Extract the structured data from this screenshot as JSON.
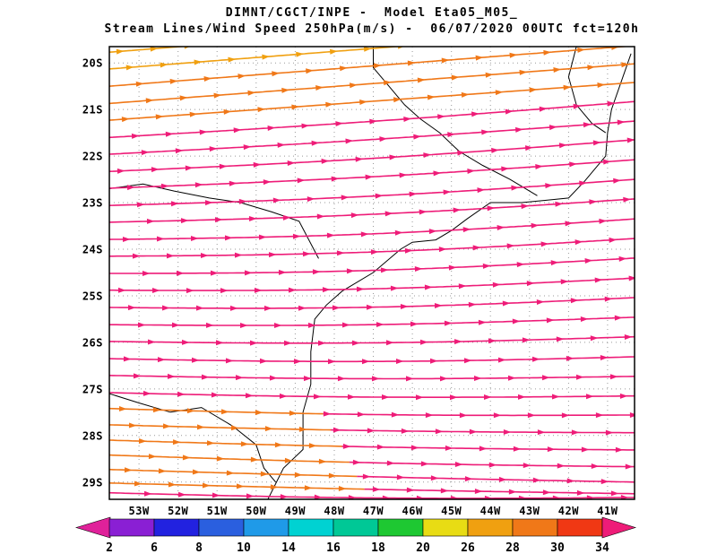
{
  "header": {
    "title_line1": "DIMNT/CGCT/INPE -  Model Eta05_M05_",
    "title_line2": "Stream Lines/Wind Speed 250hPa(m/s) -  06/07/2020 00UTC fct=120h"
  },
  "chart_data": {
    "type": "streamline-map",
    "institution": "DIMNT/CGCT/INPE",
    "model": "Eta05_M05_",
    "variable": "Stream Lines/Wind Speed",
    "level": "250hPa",
    "units": "m/s",
    "valid_time": "06/07/2020 00UTC",
    "forecast": "fct=120h",
    "x_axis": {
      "tick_labels": [
        "53W",
        "52W",
        "51W",
        "50W",
        "49W",
        "48W",
        "47W",
        "46W",
        "45W",
        "44W",
        "43W",
        "42W",
        "41W"
      ],
      "tick_lons": [
        53,
        52,
        51,
        50,
        49,
        48,
        47,
        46,
        45,
        44,
        43,
        42,
        41
      ],
      "lon_west_edge": 53.76,
      "lon_east_edge": 40.31,
      "grid": "dotted"
    },
    "y_axis": {
      "tick_labels": [
        "20S",
        "21S",
        "22S",
        "23S",
        "24S",
        "25S",
        "26S",
        "27S",
        "28S",
        "29S"
      ],
      "tick_lats": [
        20,
        21,
        22,
        23,
        24,
        25,
        26,
        27,
        28,
        29
      ],
      "lat_north_edge": 19.65,
      "lat_south_edge": 29.37,
      "grid": "dotted"
    },
    "colorbar": {
      "units": "m/s",
      "tick_labels": [
        "2",
        "6",
        "8",
        "10",
        "14",
        "16",
        "18",
        "20",
        "26",
        "28",
        "30",
        "34"
      ],
      "colors": [
        "#e0219a",
        "#8a1fd4",
        "#2222e0",
        "#2a5fdf",
        "#1f9ae8",
        "#00d2d2",
        "#00c896",
        "#1ec832",
        "#e8dc14",
        "#f0a010",
        "#f07818",
        "#f03814",
        "#ee1c78"
      ]
    },
    "speed_band_colors": {
      "26_28": "#f0a010",
      "28_30": "#f07818",
      "over_34": "#ee1c78"
    },
    "streamlines": [
      {
        "latL": 19.77,
        "latR": 18.88,
        "bow": 0,
        "color": "#f0a010"
      },
      {
        "latL": 20.13,
        "latR": 19.25,
        "bow": 0,
        "color": "#f0a010"
      },
      {
        "latL": 20.5,
        "latR": 19.63,
        "bow": 0,
        "color": "#f07818"
      },
      {
        "latL": 20.87,
        "latR": 20.02,
        "bow": 0,
        "color": "#f07818"
      },
      {
        "latL": 21.23,
        "latR": 20.42,
        "bow": 0,
        "color": "#f07818"
      },
      {
        "latL": 21.6,
        "latR": 20.83,
        "bow": 0.04,
        "color": "#ee1c78"
      },
      {
        "latL": 21.96,
        "latR": 21.25,
        "bow": 0.04,
        "color": "#ee1c78"
      },
      {
        "latL": 22.33,
        "latR": 21.65,
        "bow": 0.06,
        "color": "#ee1c78"
      },
      {
        "latL": 22.69,
        "latR": 22.08,
        "bow": 0.06,
        "color": "#ee1c78"
      },
      {
        "latL": 23.06,
        "latR": 22.5,
        "bow": 0.08,
        "color": "#ee1c78"
      },
      {
        "latL": 23.42,
        "latR": 22.92,
        "bow": 0.08,
        "color": "#ee1c78"
      },
      {
        "latL": 23.79,
        "latR": 23.35,
        "bow": 0.1,
        "color": "#ee1c78"
      },
      {
        "latL": 24.15,
        "latR": 23.77,
        "bow": 0.1,
        "color": "#ee1c78"
      },
      {
        "latL": 24.52,
        "latR": 24.19,
        "bow": 0.1,
        "color": "#ee1c78"
      },
      {
        "latL": 24.88,
        "latR": 24.62,
        "bow": 0.1,
        "color": "#ee1c78"
      },
      {
        "latL": 25.25,
        "latR": 25.04,
        "bow": 0.1,
        "color": "#ee1c78"
      },
      {
        "latL": 25.62,
        "latR": 25.46,
        "bow": 0.08,
        "color": "#ee1c78"
      },
      {
        "latL": 25.98,
        "latR": 25.88,
        "bow": 0.08,
        "color": "#ee1c78"
      },
      {
        "latL": 26.35,
        "latR": 26.31,
        "bow": 0.08,
        "color": "#ee1c78"
      },
      {
        "latL": 26.71,
        "latR": 26.73,
        "bow": 0.06,
        "color": "#ee1c78"
      },
      {
        "latL": 27.08,
        "latR": 27.15,
        "bow": 0.06,
        "color": "#ee1c78"
      },
      {
        "latL": 27.42,
        "latR": 27.56,
        "bow": 0.06,
        "color": "#f07818",
        "color2": "#ee1c78",
        "split_lonW": 48.3
      },
      {
        "latL": 27.77,
        "latR": 27.94,
        "bow": 0.04,
        "color": "#f07818",
        "color2": "#ee1c78",
        "split_lonW": 48.1
      },
      {
        "latL": 28.1,
        "latR": 28.31,
        "bow": 0.04,
        "color": "#f07818",
        "color2": "#ee1c78",
        "split_lonW": 47.8
      },
      {
        "latL": 28.42,
        "latR": 28.67,
        "bow": 0.04,
        "color": "#f07818",
        "color2": "#ee1c78",
        "split_lonW": 47.6
      },
      {
        "latL": 28.73,
        "latR": 29.0,
        "bow": 0.02,
        "color": "#f07818",
        "color2": "#ee1c78",
        "split_lonW": 47.4
      },
      {
        "latL": 29.02,
        "latR": 29.25,
        "bow": 0.02,
        "color": "#f07818",
        "color2": "#ee1c78",
        "split_lonW": 47.2
      },
      {
        "latL": 29.23,
        "latR": 29.33,
        "bow": 0.06,
        "color": "#ee1c78"
      }
    ],
    "map": {
      "coastline": [
        [
          40.4,
          19.8
        ],
        [
          40.9,
          21.0
        ],
        [
          41.0,
          21.5
        ],
        [
          41.05,
          22.0
        ],
        [
          41.6,
          22.55
        ],
        [
          42.0,
          22.9
        ],
        [
          42.6,
          22.95
        ],
        [
          43.2,
          23.0
        ],
        [
          44.0,
          23.0
        ],
        [
          44.6,
          23.35
        ],
        [
          45.0,
          23.6
        ],
        [
          45.4,
          23.8
        ],
        [
          46.0,
          23.85
        ],
        [
          46.3,
          24.0
        ],
        [
          47.0,
          24.5
        ],
        [
          47.8,
          24.9
        ],
        [
          48.2,
          25.2
        ],
        [
          48.5,
          25.5
        ],
        [
          48.6,
          26.2
        ],
        [
          48.6,
          26.9
        ],
        [
          48.8,
          27.5
        ],
        [
          48.8,
          28.3
        ],
        [
          49.3,
          28.7
        ],
        [
          49.7,
          29.37
        ]
      ],
      "borders": [
        [
          [
            53.76,
            22.7
          ],
          [
            52.9,
            22.6
          ],
          [
            52.1,
            22.75
          ],
          [
            51.2,
            22.9
          ],
          [
            50.4,
            23.0
          ],
          [
            49.6,
            23.2
          ],
          [
            48.9,
            23.4
          ],
          [
            48.4,
            24.2
          ]
        ],
        [
          [
            47.0,
            19.65
          ],
          [
            47.0,
            20.1
          ],
          [
            46.6,
            20.5
          ],
          [
            46.2,
            20.9
          ],
          [
            45.8,
            21.2
          ],
          [
            45.3,
            21.5
          ],
          [
            44.8,
            21.9
          ],
          [
            44.2,
            22.2
          ],
          [
            43.5,
            22.5
          ],
          [
            42.8,
            22.85
          ]
        ],
        [
          [
            53.76,
            27.1
          ],
          [
            53.0,
            27.3
          ],
          [
            52.2,
            27.5
          ],
          [
            51.4,
            27.4
          ],
          [
            50.6,
            27.8
          ],
          [
            50.0,
            28.2
          ],
          [
            49.8,
            28.7
          ],
          [
            49.5,
            29.0
          ]
        ],
        [
          [
            41.8,
            19.65
          ],
          [
            42.0,
            20.3
          ],
          [
            41.8,
            20.9
          ],
          [
            41.4,
            21.3
          ],
          [
            41.05,
            21.5
          ]
        ]
      ]
    }
  }
}
